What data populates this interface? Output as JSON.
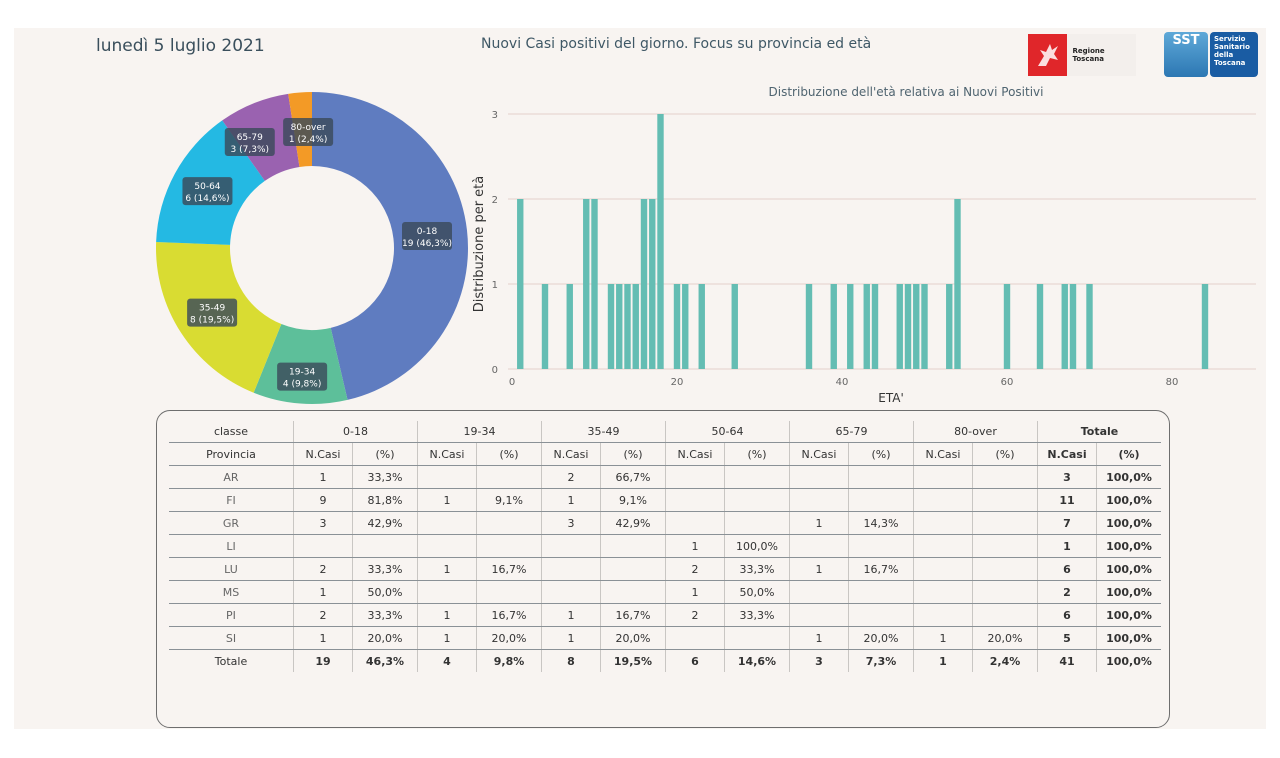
{
  "header": {
    "date": "lunedì 5 luglio 2021",
    "title": "Nuovi Casi positivi del giorno. Focus su provincia ed età",
    "logos": [
      {
        "name": "regione-toscana-logo",
        "text": "Regione Toscana"
      },
      {
        "name": "sst-logo",
        "text": "SST",
        "subtext": [
          "Servizio",
          "Sanitario",
          "della",
          "Toscana"
        ]
      }
    ]
  },
  "chart_data": [
    {
      "type": "pie",
      "subtype": "donut",
      "title": "",
      "categories": [
        "0-18",
        "19-34",
        "35-49",
        "50-64",
        "65-79",
        "80-over"
      ],
      "values": [
        19,
        4,
        8,
        6,
        3,
        1
      ],
      "percents": [
        "46,3%",
        "9,8%",
        "19,5%",
        "14,6%",
        "7,3%",
        "2,4%"
      ],
      "labels": [
        "19 (46,3%)",
        "4 (9,8%)",
        "8 (19,5%)",
        "6 (14,6%)",
        "3 (7,3%)",
        "1 (2,4%)"
      ],
      "colors": [
        "#5f7cc0",
        "#5dbf9a",
        "#d9dc32",
        "#24b9e3",
        "#9a62b0",
        "#f39a26"
      ]
    },
    {
      "type": "bar",
      "title": "Distribuzione dell'età relativa ai Nuovi Positivi",
      "xlabel": "ETA'",
      "ylabel": "Distribuzione per età",
      "xlim": [
        0,
        90
      ],
      "ylim": [
        0,
        3
      ],
      "xticks": [
        0,
        20,
        40,
        60,
        80
      ],
      "yticks": [
        0,
        1,
        2,
        3
      ],
      "grid": true,
      "color": "#64bdb3",
      "x": [
        1,
        4,
        7,
        9,
        10,
        12,
        13,
        14,
        15,
        16,
        17,
        18,
        20,
        21,
        23,
        27,
        36,
        39,
        41,
        43,
        44,
        47,
        48,
        49,
        50,
        53,
        54,
        60,
        64,
        67,
        68,
        70,
        84
      ],
      "values": [
        2,
        1,
        1,
        2,
        2,
        1,
        1,
        1,
        1,
        2,
        2,
        3,
        1,
        1,
        1,
        1,
        1,
        1,
        1,
        1,
        1,
        1,
        1,
        1,
        1,
        1,
        2,
        1,
        1,
        1,
        1,
        1,
        1
      ]
    }
  ],
  "table": {
    "classe_label": "classe",
    "provincia_label": "Provincia",
    "groups": [
      "0-18",
      "19-34",
      "35-49",
      "50-64",
      "65-79",
      "80-over",
      "Totale"
    ],
    "sub_headers": [
      "N.Casi",
      "(%)"
    ],
    "rows": [
      {
        "prov": "AR",
        "cells": [
          "1",
          "33,3%",
          "",
          "",
          "2",
          "66,7%",
          "",
          "",
          "",
          "",
          "",
          "",
          "3",
          "100,0%"
        ]
      },
      {
        "prov": "FI",
        "cells": [
          "9",
          "81,8%",
          "1",
          "9,1%",
          "1",
          "9,1%",
          "",
          "",
          "",
          "",
          "",
          "",
          "11",
          "100,0%"
        ]
      },
      {
        "prov": "GR",
        "cells": [
          "3",
          "42,9%",
          "",
          "",
          "3",
          "42,9%",
          "",
          "",
          "1",
          "14,3%",
          "",
          "",
          "7",
          "100,0%"
        ]
      },
      {
        "prov": "LI",
        "cells": [
          "",
          "",
          "",
          "",
          "",
          "",
          "1",
          "100,0%",
          "",
          "",
          "",
          "",
          "1",
          "100,0%"
        ]
      },
      {
        "prov": "LU",
        "cells": [
          "2",
          "33,3%",
          "1",
          "16,7%",
          "",
          "",
          "2",
          "33,3%",
          "1",
          "16,7%",
          "",
          "",
          "6",
          "100,0%"
        ]
      },
      {
        "prov": "MS",
        "cells": [
          "1",
          "50,0%",
          "",
          "",
          "",
          "",
          "1",
          "50,0%",
          "",
          "",
          "",
          "",
          "2",
          "100,0%"
        ]
      },
      {
        "prov": "PI",
        "cells": [
          "2",
          "33,3%",
          "1",
          "16,7%",
          "1",
          "16,7%",
          "2",
          "33,3%",
          "",
          "",
          "",
          "",
          "6",
          "100,0%"
        ]
      },
      {
        "prov": "SI",
        "cells": [
          "1",
          "20,0%",
          "1",
          "20,0%",
          "1",
          "20,0%",
          "",
          "",
          "1",
          "20,0%",
          "1",
          "20,0%",
          "5",
          "100,0%"
        ]
      }
    ],
    "total": {
      "prov": "Totale",
      "cells": [
        "19",
        "46,3%",
        "4",
        "9,8%",
        "8",
        "19,5%",
        "6",
        "14,6%",
        "3",
        "7,3%",
        "1",
        "2,4%",
        "41",
        "100,0%"
      ]
    }
  }
}
